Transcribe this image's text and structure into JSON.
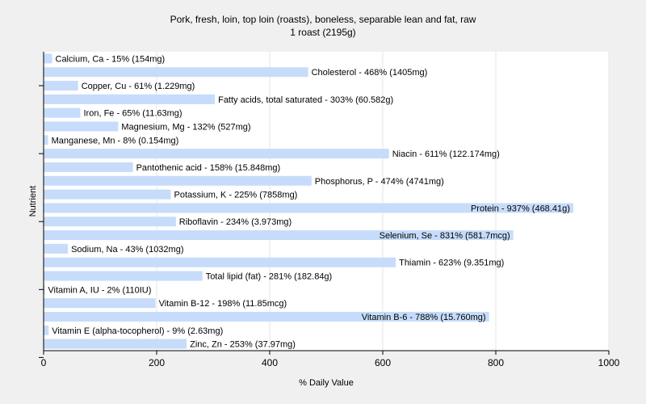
{
  "chart_data": {
    "type": "bar",
    "orientation": "horizontal",
    "title": "Pork, fresh, loin, top loin (roasts), boneless, separable lean and fat, raw",
    "subtitle": "1 roast (2195g)",
    "xlabel": "% Daily Value",
    "ylabel": "Nutrient",
    "xlim": [
      0,
      1000
    ],
    "xticks": [
      "0",
      "200",
      "400",
      "600",
      "800",
      "1000"
    ],
    "grid": true,
    "bar_color": "#c6dcfa",
    "bars": [
      {
        "value": 15,
        "label": "Calcium, Ca - 15% (154mg)"
      },
      {
        "value": 468,
        "label": "Cholesterol - 468% (1405mg)"
      },
      {
        "value": 61,
        "label": "Copper, Cu - 61% (1.229mg)"
      },
      {
        "value": 303,
        "label": "Fatty acids, total saturated - 303% (60.582g)"
      },
      {
        "value": 65,
        "label": "Iron, Fe - 65% (11.63mg)"
      },
      {
        "value": 132,
        "label": "Magnesium, Mg - 132% (527mg)"
      },
      {
        "value": 8,
        "label": "Manganese, Mn - 8% (0.154mg)"
      },
      {
        "value": 611,
        "label": "Niacin - 611% (122.174mg)"
      },
      {
        "value": 158,
        "label": "Pantothenic acid - 158% (15.848mg)"
      },
      {
        "value": 474,
        "label": "Phosphorus, P - 474% (4741mg)"
      },
      {
        "value": 225,
        "label": "Potassium, K - 225% (7858mg)"
      },
      {
        "value": 937,
        "label": "Protein - 937% (468.41g)"
      },
      {
        "value": 234,
        "label": "Riboflavin - 234% (3.973mg)"
      },
      {
        "value": 831,
        "label": "Selenium, Se - 831% (581.7mcg)"
      },
      {
        "value": 43,
        "label": "Sodium, Na - 43% (1032mg)"
      },
      {
        "value": 623,
        "label": "Thiamin - 623% (9.351mg)"
      },
      {
        "value": 281,
        "label": "Total lipid (fat) - 281% (182.84g)"
      },
      {
        "value": 2,
        "label": "Vitamin A, IU - 2% (110IU)"
      },
      {
        "value": 198,
        "label": "Vitamin B-12 - 198% (11.85mcg)"
      },
      {
        "value": 788,
        "label": "Vitamin B-6 - 788% (15.760mg)"
      },
      {
        "value": 9,
        "label": "Vitamin E (alpha-tocopherol) - 9% (2.63mg)"
      },
      {
        "value": 253,
        "label": "Zinc, Zn - 253% (37.97mg)"
      }
    ]
  }
}
